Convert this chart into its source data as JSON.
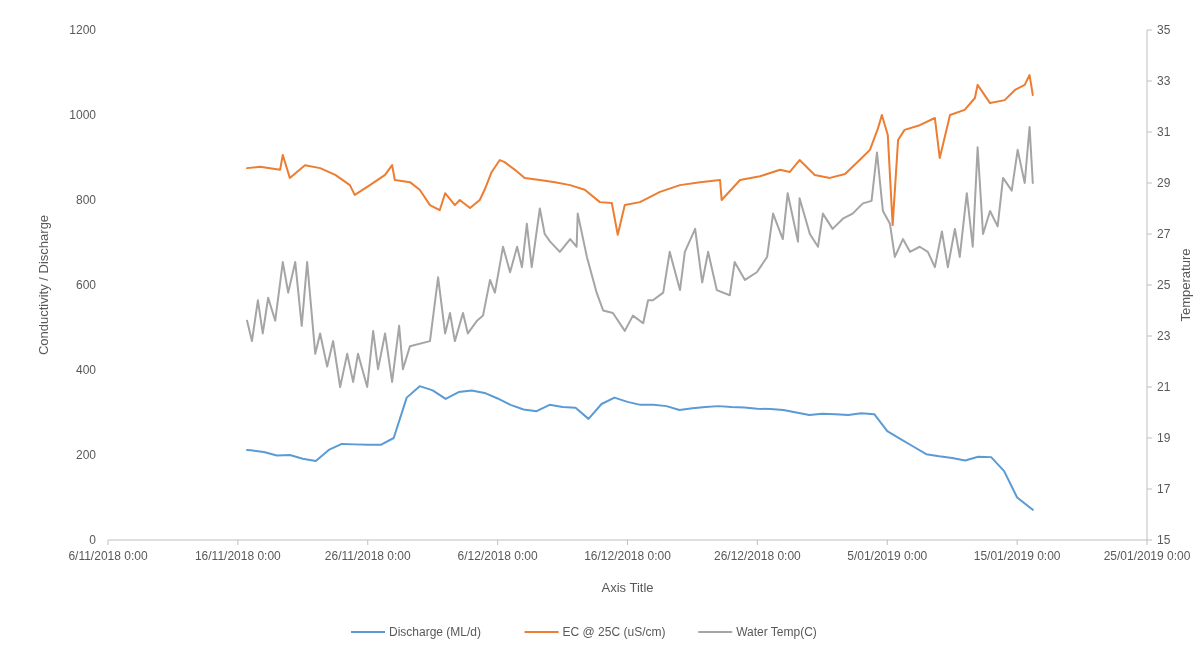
{
  "chart_data": {
    "type": "line",
    "xlabel": "Axis Title",
    "ylabel": "Conductivity / Discharge",
    "y2label": "Temperature",
    "legend": "bottom",
    "grid": false,
    "xlim": [
      "2018-11-06",
      "2019-01-25"
    ],
    "xticks": [
      {
        "value": "2018-11-06",
        "label": "6/11/2018 0:00"
      },
      {
        "value": "2018-11-16",
        "label": "16/11/2018 0:00"
      },
      {
        "value": "2018-11-26",
        "label": "26/11/2018 0:00"
      },
      {
        "value": "2018-12-06",
        "label": "6/12/2018 0:00"
      },
      {
        "value": "2018-12-16",
        "label": "16/12/2018 0:00"
      },
      {
        "value": "2018-12-26",
        "label": "26/12/2018 0:00"
      },
      {
        "value": "2019-01-05",
        "label": "5/01/2019 0:00"
      },
      {
        "value": "2019-01-15",
        "label": "15/01/2019 0:00"
      },
      {
        "value": "2019-01-25",
        "label": "25/01/2019 0:00"
      }
    ],
    "ylim": [
      0,
      1200
    ],
    "yticks": [
      0,
      200,
      400,
      600,
      800,
      1000,
      1200
    ],
    "y2lim": [
      15,
      35
    ],
    "y2ticks": [
      15,
      17,
      19,
      21,
      23,
      25,
      27,
      29,
      31,
      33,
      35
    ],
    "series": [
      {
        "name": "Discharge (ML/d)",
        "color": "#5b9bd5",
        "x": [
          "2018-11-16T17:00",
          "2018-11-17",
          "2018-11-18",
          "2018-11-19",
          "2018-11-20",
          "2018-11-21",
          "2018-11-22",
          "2018-11-23",
          "2018-11-24",
          "2018-11-25",
          "2018-11-26",
          "2018-11-27",
          "2018-11-28",
          "2018-11-29",
          "2018-11-30",
          "2018-12-01",
          "2018-12-02",
          "2018-12-03",
          "2018-12-04",
          "2018-12-05",
          "2018-12-06",
          "2018-12-07",
          "2018-12-08",
          "2018-12-09",
          "2018-12-10",
          "2018-12-11",
          "2018-12-12",
          "2018-12-13",
          "2018-12-14",
          "2018-12-15",
          "2018-12-16",
          "2018-12-17",
          "2018-12-18",
          "2018-12-19",
          "2018-12-20",
          "2018-12-21",
          "2018-12-22",
          "2018-12-23",
          "2018-12-24",
          "2018-12-25",
          "2018-12-26",
          "2018-12-27",
          "2018-12-28",
          "2018-12-29",
          "2018-12-30",
          "2018-12-31",
          "2019-01-01",
          "2019-01-02",
          "2019-01-03",
          "2019-01-04",
          "2019-01-05",
          "2019-01-06",
          "2019-01-07",
          "2019-01-08",
          "2019-01-09",
          "2019-01-10",
          "2019-01-11",
          "2019-01-12",
          "2019-01-13",
          "2019-01-14",
          "2019-01-15",
          "2019-01-16T05:00"
        ],
        "values": [
          212,
          211,
          207,
          199,
          200,
          191,
          186,
          212,
          226,
          225,
          224,
          224,
          240,
          335,
          362,
          352,
          332,
          348,
          352,
          346,
          333,
          318,
          307,
          303,
          318,
          313,
          311,
          285,
          320,
          335,
          325,
          318,
          318,
          315,
          306,
          310,
          313,
          315,
          313,
          312,
          309,
          308,
          306,
          300,
          294,
          297,
          296,
          294,
          298,
          296,
          256,
          238,
          220,
          202,
          197,
          193,
          187,
          196,
          195,
          162,
          100,
          71
        ]
      },
      {
        "name": "EC @ 25C (uS/cm)",
        "color": "#ed7d31",
        "x": [
          "2018-11-16T17:00",
          "2018-11-17T17:00",
          "2018-11-19T06:00",
          "2018-11-19T11:00",
          "2018-11-20T00:00",
          "2018-11-21T04:00",
          "2018-11-22T08:00",
          "2018-11-23T12:00",
          "2018-11-24T15:00",
          "2018-11-25T00:00",
          "2018-11-26T04:00",
          "2018-11-27T08:00",
          "2018-11-27T21:00",
          "2018-11-28T02:00",
          "2018-11-29T06:00",
          "2018-11-30T00:00",
          "2018-11-30T19:00",
          "2018-12-01T13:00",
          "2018-12-01T23:00",
          "2018-12-02T17:00",
          "2018-12-03T02:00",
          "2018-12-03T21:00",
          "2018-12-04T15:00",
          "2018-12-05T00:00",
          "2018-12-05T13:00",
          "2018-12-06T04:00",
          "2018-12-06T13:00",
          "2018-12-07T08:00",
          "2018-12-08T02:00",
          "2018-12-09T06:00",
          "2018-12-10T10:00",
          "2018-12-11T14:00",
          "2018-12-12T17:00",
          "2018-12-13T21:00",
          "2018-12-14T19:00",
          "2018-12-15T06:00",
          "2018-12-15T19:00",
          "2018-12-16T23:00",
          "2018-12-18T12:00",
          "2018-12-20T01:00",
          "2018-12-21T14:00",
          "2018-12-23T03:00",
          "2018-12-23T06:00",
          "2018-12-24T16:00",
          "2018-12-26T05:00",
          "2018-12-27T18:00",
          "2018-12-28T12:00",
          "2018-12-29T06:00",
          "2018-12-30T10:00",
          "2018-12-31T14:00",
          "2019-01-01T18:00",
          "2019-01-02T21:00",
          "2019-01-03T16:00",
          "2019-01-04T07:00",
          "2019-01-04T14:00",
          "2019-01-05T01:00",
          "2019-01-05T10:00",
          "2019-01-05T20:00",
          "2019-01-06T08:00",
          "2019-01-07T12:00",
          "2019-01-08T16:00",
          "2019-01-09T01:00",
          "2019-01-09T20:00",
          "2019-01-10T23:00",
          "2019-01-11T18:00",
          "2019-01-11T23:00",
          "2019-01-12T22:00",
          "2019-01-14T01:00",
          "2019-01-14T20:00",
          "2019-01-15T14:00",
          "2019-01-15T23:00",
          "2019-01-16T05:00"
        ],
        "values": [
          875,
          878,
          871,
          906,
          852,
          882,
          875,
          859,
          835,
          812,
          835,
          859,
          882,
          847,
          842,
          824,
          788,
          776,
          816,
          788,
          800,
          781,
          800,
          824,
          866,
          894,
          889,
          871,
          852,
          847,
          842,
          835,
          824,
          795,
          793,
          718,
          788,
          795,
          819,
          835,
          842,
          847,
          800,
          847,
          856,
          871,
          866,
          894,
          859,
          852,
          861,
          894,
          918,
          969,
          1000,
          953,
          741,
          941,
          965,
          976,
          993,
          899,
          1000,
          1012,
          1040,
          1071,
          1028,
          1035,
          1059,
          1071,
          1094,
          1047
        ]
      },
      {
        "name": "Water Temp(C)",
        "color": "#a5a5a5",
        "axis": "y2",
        "x": [
          "2018-11-16T17:00",
          "2018-11-17T02:00",
          "2018-11-17T13:00",
          "2018-11-17T22:00",
          "2018-11-18T08:00",
          "2018-11-18T21:00",
          "2018-11-19T11:00",
          "2018-11-19T21:00",
          "2018-11-20T10:00",
          "2018-11-20T22:00",
          "2018-11-21T08:00",
          "2018-11-21T23:00",
          "2018-11-22T08:00",
          "2018-11-22T21:00",
          "2018-11-23T08:00",
          "2018-11-23T21:00",
          "2018-11-24T10:00",
          "2018-11-24T21:00",
          "2018-11-25T06:00",
          "2018-11-25T23:00",
          "2018-11-26T10:00",
          "2018-11-26T19:00",
          "2018-11-27T08:00",
          "2018-11-27T21:00",
          "2018-11-28T10:00",
          "2018-11-28T17:00",
          "2018-11-29T06:00",
          "2018-11-30T19:00",
          "2018-12-01T10:00",
          "2018-12-01T23:00",
          "2018-12-02T08:00",
          "2018-12-02T17:00",
          "2018-12-03T08:00",
          "2018-12-03T17:00",
          "2018-12-04T10:00",
          "2018-12-04T21:00",
          "2018-12-05T10:00",
          "2018-12-05T19:00",
          "2018-12-06T10:00",
          "2018-12-06T23:00",
          "2018-12-07T12:00",
          "2018-12-07T21:00",
          "2018-12-08T06:00",
          "2018-12-08T15:00",
          "2018-12-09T06:00",
          "2018-12-09T15:00",
          "2018-12-10T01:00",
          "2018-12-10T19:00",
          "2018-12-11T14:00",
          "2018-12-12T02:00",
          "2018-12-12T04:00",
          "2018-12-12T21:00",
          "2018-12-13T15:00",
          "2018-12-14T03:00",
          "2018-12-14T21:00",
          "2018-12-15T19:00",
          "2018-12-16T10:00",
          "2018-12-17T05:00",
          "2018-12-17T14:00",
          "2018-12-17T23:00",
          "2018-12-18T18:00",
          "2018-12-19T06:00",
          "2018-12-20T01:00",
          "2018-12-20T10:00",
          "2018-12-21T05:00",
          "2018-12-21T18:00",
          "2018-12-22T05:00",
          "2018-12-22T21:00",
          "2018-12-23T21:00",
          "2018-12-24T06:00",
          "2018-12-25T01:00",
          "2018-12-25T23:00",
          "2018-12-26T18:00",
          "2018-12-27T05:00",
          "2018-12-27T23:00",
          "2018-12-28T08:00",
          "2018-12-29T03:00",
          "2018-12-29T06:00",
          "2018-12-30T01:00",
          "2018-12-30T16:00",
          "2018-12-31T01:00",
          "2018-12-31T19:00",
          "2019-01-01T14:00",
          "2019-01-02T08:00",
          "2019-01-03T03:00",
          "2019-01-03T19:00",
          "2019-01-04T05:00",
          "2019-01-04T16:00",
          "2019-01-05T05:00",
          "2019-01-05T14:00",
          "2019-01-06T05:00",
          "2019-01-06T18:00",
          "2019-01-07T12:00",
          "2019-01-08T03:00",
          "2019-01-08T16:00",
          "2019-01-09T05:00",
          "2019-01-09T16:00",
          "2019-01-10T05:00",
          "2019-01-10T14:00",
          "2019-01-11T03:00",
          "2019-01-11T14:00",
          "2019-01-11T23:00",
          "2019-01-12T09:00",
          "2019-01-12T22:00",
          "2019-01-13T12:00",
          "2019-01-13T22:00",
          "2019-01-14T14:00",
          "2019-01-15T01:00",
          "2019-01-15T14:00",
          "2019-01-15T23:00",
          "2019-01-16T05:00"
        ],
        "values": [
          23.6,
          22.8,
          24.4,
          23.1,
          24.5,
          23.6,
          25.9,
          24.7,
          25.9,
          23.4,
          25.9,
          22.3,
          23.1,
          21.8,
          22.8,
          21.0,
          22.3,
          21.2,
          22.3,
          21.0,
          23.2,
          21.7,
          23.1,
          21.2,
          23.4,
          21.7,
          22.6,
          22.8,
          25.3,
          23.1,
          23.9,
          22.8,
          23.9,
          23.1,
          23.6,
          23.8,
          25.2,
          24.7,
          26.5,
          25.5,
          26.5,
          25.7,
          27.4,
          25.7,
          28.0,
          27.0,
          26.7,
          26.3,
          26.8,
          26.5,
          27.8,
          26.1,
          24.7,
          24.0,
          23.9,
          23.2,
          23.8,
          23.5,
          24.4,
          24.4,
          24.7,
          26.3,
          24.8,
          26.3,
          27.2,
          25.1,
          26.3,
          24.8,
          24.6,
          25.9,
          25.2,
          25.5,
          26.1,
          27.8,
          26.8,
          28.6,
          26.7,
          28.4,
          27.0,
          26.5,
          27.8,
          27.2,
          27.6,
          27.8,
          28.2,
          28.3,
          30.2,
          27.9,
          27.4,
          26.1,
          26.8,
          26.3,
          26.5,
          26.3,
          25.7,
          27.1,
          25.7,
          27.2,
          26.1,
          28.6,
          26.5,
          30.4,
          27.0,
          27.9,
          27.3,
          29.2,
          28.7,
          30.3,
          29.0,
          31.2,
          29.0
        ]
      }
    ]
  }
}
